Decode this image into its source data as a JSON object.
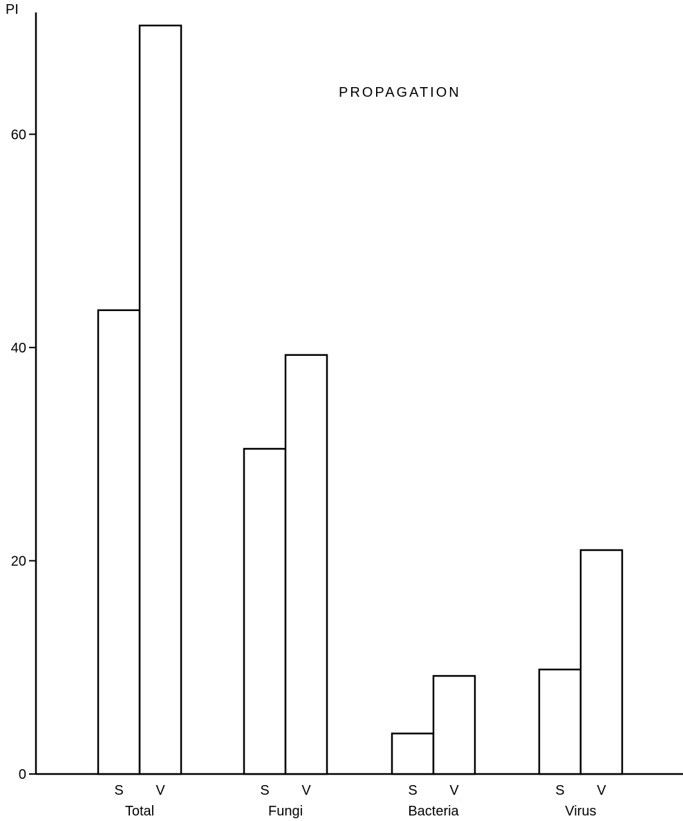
{
  "chart_data": {
    "type": "bar",
    "title": "PROPAGATION",
    "ylabel": "PI",
    "xlabel": "",
    "ylim": [
      0,
      70
    ],
    "yticks": [
      "0",
      "20",
      "40",
      "60"
    ],
    "grid": false,
    "categories": [
      "Total",
      "Fungi",
      "Bacteria",
      "Virus"
    ],
    "series": [
      {
        "name": "S",
        "values": [
          43.5,
          30.5,
          3.8,
          9.8
        ]
      },
      {
        "name": "V",
        "values": [
          70.2,
          39.3,
          9.2,
          21.0
        ]
      }
    ]
  }
}
